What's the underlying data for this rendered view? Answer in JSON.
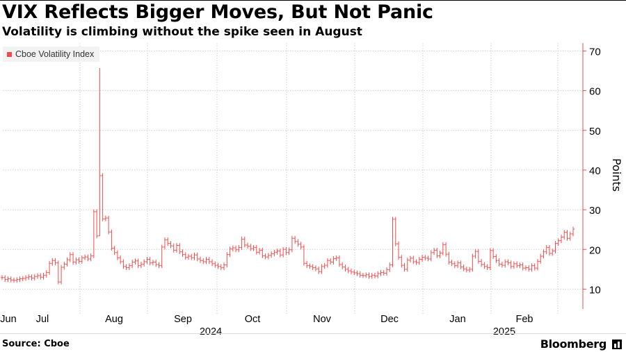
{
  "header": {
    "title": "VIX Reflects Bigger Moves, But Not Panic",
    "subtitle": "Volatility is climbing without the spike seen in August"
  },
  "footer": {
    "source": "Source: Cboe",
    "brand": "Bloomberg"
  },
  "chart_data": {
    "type": "line",
    "legend": [
      {
        "name": "Cboe Volatility Index",
        "color": "#f04b4b"
      }
    ],
    "legend_position": "top-left",
    "ylabel": "Points",
    "ylim": [
      5,
      72
    ],
    "y_ticks": [
      10,
      20,
      30,
      40,
      50,
      60,
      70
    ],
    "x_ticks": [
      "Jun",
      "Jul",
      "Aug",
      "Sep",
      "Oct",
      "Nov",
      "Dec",
      "Jan",
      "Feb"
    ],
    "x_year_labels": [
      "2024",
      "2025"
    ],
    "grid": true,
    "series": [
      {
        "name": "Cboe Volatility Index",
        "color": "#f04b4b",
        "values": [
          12.9,
          12.4,
          12.6,
          12.3,
          12.2,
          12.4,
          12.6,
          12.7,
          12.9,
          13.1,
          12.8,
          13.2,
          13.4,
          13.0,
          13.5,
          14.2,
          16.5,
          17.2,
          16.6,
          11.8,
          15.5,
          16.3,
          17.4,
          18.7,
          16.8,
          17.4,
          17.0,
          17.9,
          18.1,
          17.6,
          18.4,
          29.5,
          23.4,
          38.6,
          27.7,
          27.9,
          24.4,
          20.3,
          19.2,
          17.9,
          16.9,
          15.7,
          15.4,
          15.9,
          16.8,
          17.1,
          15.9,
          16.3,
          16.9,
          17.5,
          16.6,
          16.8,
          16.2,
          15.9,
          20.6,
          22.4,
          21.5,
          20.9,
          19.8,
          21.0,
          19.4,
          18.7,
          18.0,
          18.3,
          17.9,
          18.6,
          17.6,
          17.2,
          16.9,
          17.5,
          16.9,
          16.4,
          16.0,
          15.7,
          15.4,
          16.1,
          18.7,
          20.1,
          20.4,
          19.9,
          20.5,
          22.6,
          21.1,
          20.8,
          20.2,
          20.5,
          19.3,
          19.8,
          18.4,
          18.1,
          18.5,
          18.9,
          19.3,
          19.6,
          18.6,
          20.0,
          19.2,
          19.9,
          22.8,
          22.0,
          21.3,
          20.6,
          16.5,
          15.9,
          15.7,
          15.4,
          15.1,
          14.4,
          15.7,
          16.0,
          17.2,
          16.8,
          17.7,
          17.9,
          16.2,
          15.6,
          15.0,
          14.6,
          14.3,
          14.1,
          13.9,
          13.5,
          13.4,
          13.6,
          13.2,
          13.5,
          13.3,
          13.9,
          14.2,
          14.0,
          14.9,
          16.1,
          27.6,
          21.4,
          18.0,
          16.0,
          15.0,
          17.3,
          17.8,
          16.9,
          16.7,
          17.5,
          18.0,
          17.8,
          17.6,
          19.2,
          19.8,
          18.4,
          19.1,
          21.2,
          18.8,
          16.8,
          16.4,
          15.9,
          16.6,
          15.6,
          15.1,
          14.8,
          15.0,
          18.3,
          19.5,
          17.0,
          16.2,
          15.7,
          15.4,
          19.7,
          18.2,
          17.2,
          16.3,
          16.0,
          16.9,
          16.6,
          15.7,
          16.4,
          15.9,
          16.1,
          15.3,
          15.4,
          15.0,
          15.9,
          15.3,
          17.0,
          18.3,
          19.4,
          20.5,
          19.0,
          19.6,
          21.5,
          22.2,
          23.1,
          24.3,
          22.8,
          23.9,
          25.1
        ]
      }
    ]
  }
}
